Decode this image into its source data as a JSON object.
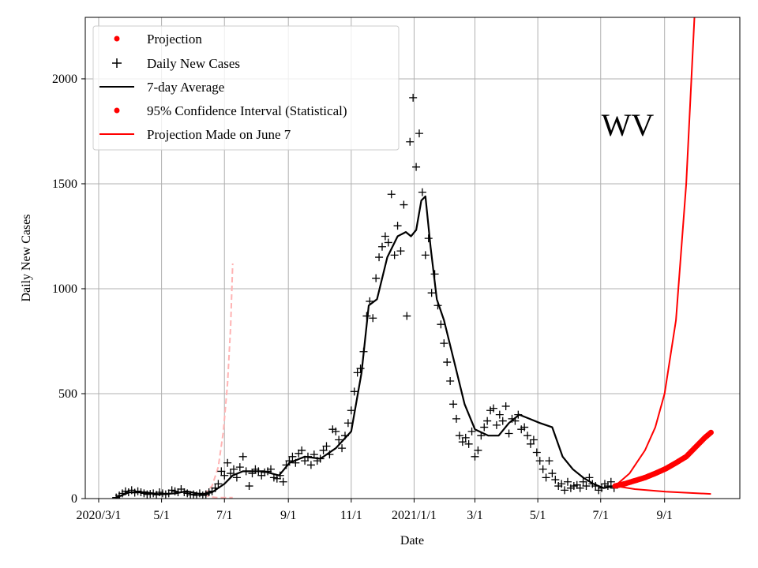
{
  "chart_data": {
    "type": "line",
    "xlabel": "Date",
    "ylabel": "Daily New Cases",
    "annotation": "WV",
    "x_unit": "days since 2020-03-01",
    "xlim": [
      -13,
      622
    ],
    "ylim": [
      0,
      2293
    ],
    "grid": true,
    "x_ticks": [
      {
        "day": 0,
        "label": "2020/3/1"
      },
      {
        "day": 61,
        "label": "5/1"
      },
      {
        "day": 122,
        "label": "7/1"
      },
      {
        "day": 184,
        "label": "9/1"
      },
      {
        "day": 245,
        "label": "11/1"
      },
      {
        "day": 306,
        "label": "2021/1/1"
      },
      {
        "day": 365,
        "label": "3/1"
      },
      {
        "day": 426,
        "label": "5/1"
      },
      {
        "day": 487,
        "label": "7/1"
      },
      {
        "day": 549,
        "label": "9/1"
      }
    ],
    "y_ticks": [
      0,
      500,
      1000,
      1500,
      2000
    ],
    "legend": {
      "placement": "top-left",
      "entries": [
        "Projection",
        "Daily New Cases",
        "7-day Average",
        "95% Confidence Interval (Statistical)",
        "Projection Made on June 7"
      ]
    },
    "colors": {
      "projection": "#ff0000",
      "old_projection": "#ffb3b3",
      "cases": "#000000",
      "grid": "#b0b0b0"
    },
    "daily_new_cases": {
      "start_day": 17,
      "step": 3,
      "values": [
        5,
        15,
        25,
        35,
        30,
        40,
        28,
        35,
        30,
        25,
        20,
        22,
        25,
        18,
        30,
        25,
        20,
        25,
        40,
        35,
        30,
        45,
        30,
        25,
        18,
        20,
        15,
        25,
        15,
        20,
        30,
        35,
        50,
        70,
        130,
        110,
        170,
        120,
        140,
        100,
        150,
        200,
        130,
        60,
        120,
        140,
        130,
        110,
        125,
        130,
        140,
        100,
        95,
        110,
        80,
        160,
        180,
        200,
        170,
        215,
        230,
        180,
        200,
        160,
        210,
        180,
        190,
        230,
        250,
        210,
        330,
        320,
        280,
        240,
        300,
        360,
        420,
        510,
        600,
        620,
        700,
        870,
        940,
        860,
        1050,
        1150,
        1200,
        1250,
        1220,
        1450,
        1160,
        1300,
        1180,
        1400,
        870,
        1700,
        1910,
        1580,
        1740,
        1460,
        1160,
        1240,
        980,
        1070,
        920,
        830,
        740,
        650,
        560,
        450,
        380,
        300,
        270,
        290,
        260,
        320,
        200,
        230,
        300,
        340,
        370,
        420,
        430,
        350,
        400,
        370,
        440,
        310,
        380,
        370,
        400,
        330,
        340,
        300,
        260,
        280,
        220,
        180,
        140,
        100,
        180,
        120,
        90,
        60,
        70,
        40,
        80,
        50,
        60,
        65,
        50,
        80,
        60,
        100,
        70,
        60,
        40,
        50,
        70,
        60,
        80,
        50
      ]
    },
    "seven_day_average": [
      [
        17,
        5
      ],
      [
        30,
        30
      ],
      [
        45,
        30
      ],
      [
        60,
        20
      ],
      [
        75,
        25
      ],
      [
        85,
        35
      ],
      [
        100,
        20
      ],
      [
        110,
        30
      ],
      [
        122,
        70
      ],
      [
        130,
        110
      ],
      [
        140,
        130
      ],
      [
        160,
        130
      ],
      [
        175,
        110
      ],
      [
        185,
        170
      ],
      [
        200,
        200
      ],
      [
        215,
        190
      ],
      [
        230,
        240
      ],
      [
        245,
        320
      ],
      [
        255,
        600
      ],
      [
        262,
        920
      ],
      [
        270,
        950
      ],
      [
        280,
        1150
      ],
      [
        290,
        1250
      ],
      [
        298,
        1270
      ],
      [
        303,
        1250
      ],
      [
        308,
        1280
      ],
      [
        313,
        1420
      ],
      [
        317,
        1440
      ],
      [
        322,
        1200
      ],
      [
        328,
        950
      ],
      [
        335,
        850
      ],
      [
        345,
        650
      ],
      [
        355,
        450
      ],
      [
        365,
        330
      ],
      [
        378,
        300
      ],
      [
        388,
        300
      ],
      [
        398,
        360
      ],
      [
        408,
        400
      ],
      [
        418,
        380
      ],
      [
        428,
        360
      ],
      [
        440,
        340
      ],
      [
        450,
        200
      ],
      [
        460,
        140
      ],
      [
        470,
        100
      ],
      [
        480,
        70
      ],
      [
        490,
        50
      ],
      [
        500,
        60
      ]
    ],
    "projection": [
      [
        501,
        60
      ],
      [
        510,
        70
      ],
      [
        520,
        85
      ],
      [
        530,
        100
      ],
      [
        540,
        120
      ],
      [
        550,
        142
      ],
      [
        560,
        170
      ],
      [
        570,
        200
      ],
      [
        580,
        250
      ],
      [
        588,
        290
      ],
      [
        594,
        315
      ]
    ],
    "ci_upper": [
      [
        501,
        60
      ],
      [
        515,
        120
      ],
      [
        530,
        230
      ],
      [
        540,
        340
      ],
      [
        549,
        500
      ],
      [
        560,
        850
      ],
      [
        570,
        1500
      ],
      [
        578,
        2300
      ],
      [
        585,
        3500
      ]
    ],
    "ci_lower": [
      [
        501,
        60
      ],
      [
        520,
        45
      ],
      [
        550,
        33
      ],
      [
        594,
        22
      ]
    ],
    "old_projection_upper": [
      [
        102,
        20
      ],
      [
        110,
        60
      ],
      [
        116,
        150
      ],
      [
        121,
        320
      ],
      [
        125,
        550
      ],
      [
        128,
        820
      ],
      [
        130,
        1120
      ]
    ],
    "old_projection_lower": [
      [
        102,
        20
      ],
      [
        108,
        8
      ],
      [
        115,
        5
      ],
      [
        130,
        5
      ]
    ]
  }
}
